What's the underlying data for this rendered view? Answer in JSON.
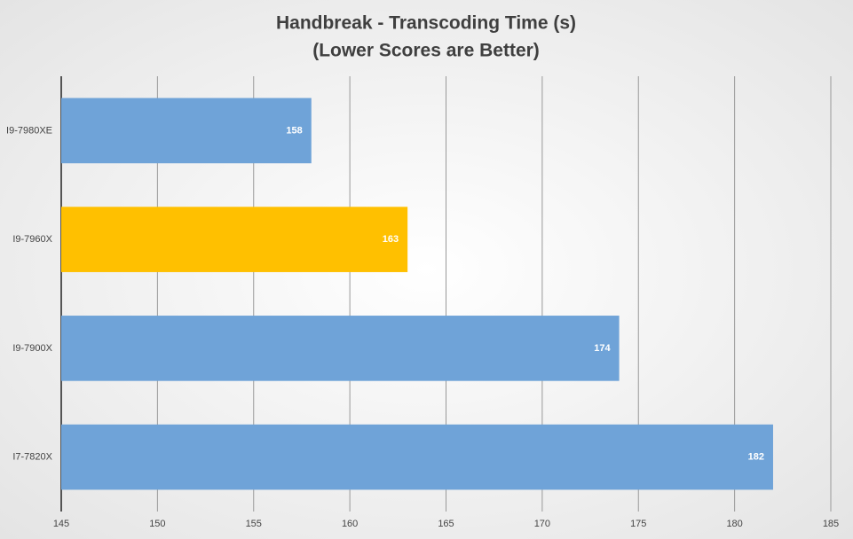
{
  "chart_data": {
    "type": "hbar",
    "title": "Handbreak - Transcoding Time (s)",
    "subtitle": "(Lower Scores are Better)",
    "categories": [
      "I9-7980XE",
      "I9-7960X",
      "I9-7900X",
      "I7-7820X"
    ],
    "values": [
      158,
      163,
      174,
      182
    ],
    "colors": [
      "#6fa3d8",
      "#ffc000",
      "#6fa3d8",
      "#6fa3d8"
    ],
    "xlim": [
      145,
      185
    ],
    "xticks": [
      145,
      150,
      155,
      160,
      165,
      170,
      175,
      180,
      185
    ],
    "grid": true
  }
}
